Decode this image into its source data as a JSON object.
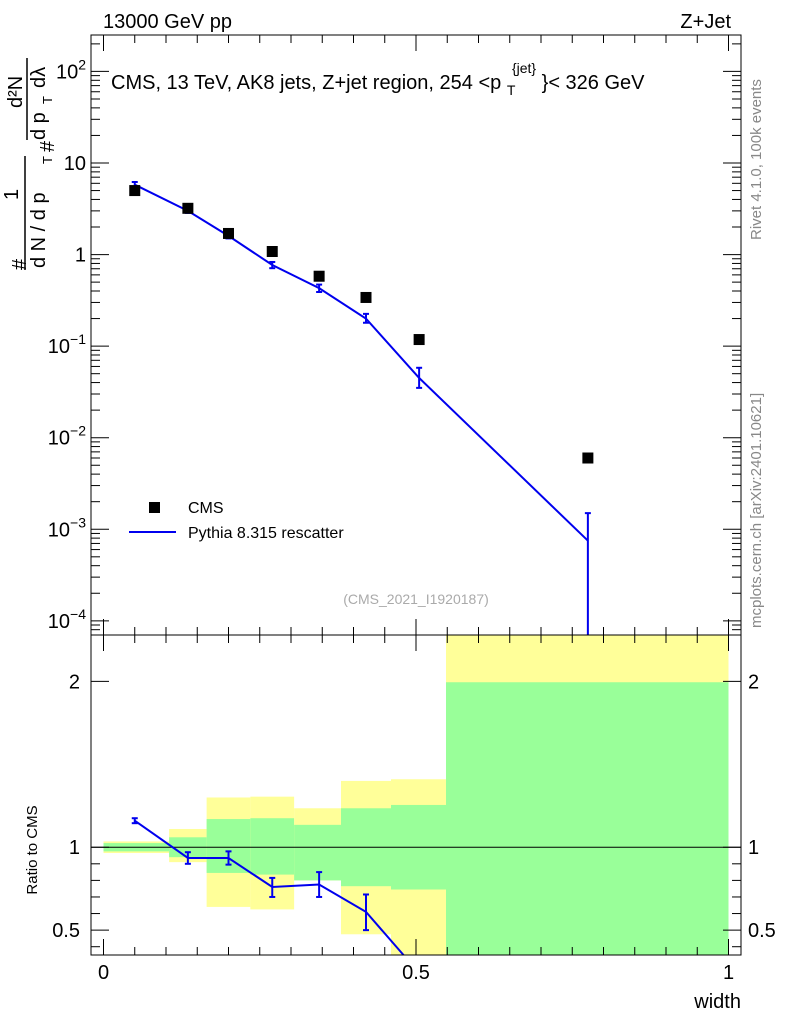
{
  "header": {
    "left": "13000 GeV pp",
    "right": "Z+Jet"
  },
  "side_labels": {
    "top": "Rivet 4.1.0,  100k events",
    "bottom": "mcplots.cern.ch [arXiv:2401.10621]"
  },
  "colors": {
    "mc": "#0000ee",
    "band_inner": "#99ff99",
    "band_outer": "#ffff99",
    "data": "#000000"
  },
  "chart_data": [
    {
      "type": "scatter",
      "panel": "main",
      "title_parts": {
        "prefix": "CMS, 13 TeV, AK8 jets, Z+jet region, 254 <p",
        "sup": "{jet}",
        "sub": "T",
        "suffix": "}< 326 GeV"
      },
      "ylabel_parts": {
        "hash": "#",
        "one": "1",
        "dn": "d N / d p",
        "sub_t": "T",
        "numer": "d²N",
        "denom": "d p",
        "dlambda": "dλ"
      },
      "yscale": "log",
      "ylim": [
        7e-05,
        250
      ],
      "xlim": [
        -0.02,
        1.02
      ],
      "yticks": [
        {
          "value": 100,
          "mant": "10",
          "exp": "2"
        },
        {
          "value": 10,
          "mant": "10",
          "exp": ""
        },
        {
          "value": 1,
          "mant": "1",
          "exp": ""
        },
        {
          "value": 0.1,
          "mant": "10",
          "exp": "−1"
        },
        {
          "value": 0.01,
          "mant": "10",
          "exp": "−2"
        },
        {
          "value": 0.001,
          "mant": "10",
          "exp": "−3"
        },
        {
          "value": 0.0001,
          "mant": "10",
          "exp": "−4"
        }
      ],
      "legend": [
        {
          "label": "CMS",
          "kind": "marker"
        },
        {
          "label": "Pythia 8.315 rescatter",
          "kind": "line"
        }
      ],
      "watermark": "(CMS_2021_I1920187)",
      "series": [
        {
          "name": "CMS",
          "x": [
            0.05,
            0.135,
            0.2,
            0.27,
            0.345,
            0.42,
            0.505,
            0.775
          ],
          "y": [
            5.0,
            3.2,
            1.7,
            1.08,
            0.58,
            0.34,
            0.118,
            0.006
          ]
        },
        {
          "name": "Pythia 8.315 rescatter",
          "x": [
            0.05,
            0.135,
            0.2,
            0.27,
            0.345,
            0.42,
            0.505,
            0.775
          ],
          "y": [
            5.8,
            3.0,
            1.6,
            0.77,
            0.43,
            0.2,
            0.045,
            0.00075
          ],
          "err_lo": [
            5.4,
            2.85,
            1.5,
            0.71,
            0.39,
            0.18,
            0.035,
            7e-05
          ],
          "err_hi": [
            6.2,
            3.15,
            1.7,
            0.83,
            0.47,
            0.225,
            0.058,
            0.0015
          ]
        }
      ]
    },
    {
      "type": "line",
      "panel": "ratio",
      "ylabel": "Ratio to CMS",
      "ylim": [
        0.35,
        2.28
      ],
      "xlim": [
        -0.02,
        1.02
      ],
      "yticks": [
        {
          "value": 0.5,
          "label": "0.5"
        },
        {
          "value": 1,
          "label": "1"
        },
        {
          "value": 2,
          "label": "2"
        }
      ],
      "xticks": [
        {
          "value": 0,
          "label": "0"
        },
        {
          "value": 0.5,
          "label": "0.5"
        },
        {
          "value": 1,
          "label": "1"
        }
      ],
      "xlabel": "width",
      "bands": [
        {
          "x0": 0.0,
          "x1": 0.105,
          "inner": [
            0.975,
            1.025
          ],
          "outer": [
            0.965,
            1.035
          ]
        },
        {
          "x0": 0.105,
          "x1": 0.165,
          "inner": [
            0.94,
            1.06
          ],
          "outer": [
            0.91,
            1.11
          ]
        },
        {
          "x0": 0.165,
          "x1": 0.235,
          "inner": [
            0.845,
            1.17
          ],
          "outer": [
            0.64,
            1.3
          ]
        },
        {
          "x0": 0.235,
          "x1": 0.305,
          "inner": [
            0.835,
            1.175
          ],
          "outer": [
            0.625,
            1.305
          ]
        },
        {
          "x0": 0.305,
          "x1": 0.38,
          "inner": [
            0.8,
            1.135
          ],
          "outer": [
            0.8,
            1.235
          ]
        },
        {
          "x0": 0.38,
          "x1": 0.46,
          "inner": [
            0.765,
            1.235
          ],
          "outer": [
            0.475,
            1.4
          ]
        },
        {
          "x0": 0.46,
          "x1": 0.548,
          "inner": [
            0.745,
            1.255
          ],
          "outer": [
            0.35,
            1.41
          ]
        },
        {
          "x0": 0.548,
          "x1": 1.0,
          "inner": [
            0.35,
            1.995
          ],
          "outer": [
            0.35,
            2.28
          ]
        }
      ],
      "series": [
        {
          "name": "Pythia 8.315 rescatter",
          "x": [
            0.05,
            0.135,
            0.2,
            0.27,
            0.345,
            0.42,
            0.48
          ],
          "y": [
            1.16,
            0.935,
            0.935,
            0.76,
            0.775,
            0.61,
            0.35
          ],
          "err_lo": [
            1.145,
            0.9,
            0.895,
            0.7,
            0.7,
            0.5,
            null
          ],
          "err_hi": [
            1.175,
            0.97,
            0.975,
            0.815,
            0.85,
            0.715,
            null
          ]
        }
      ]
    }
  ]
}
